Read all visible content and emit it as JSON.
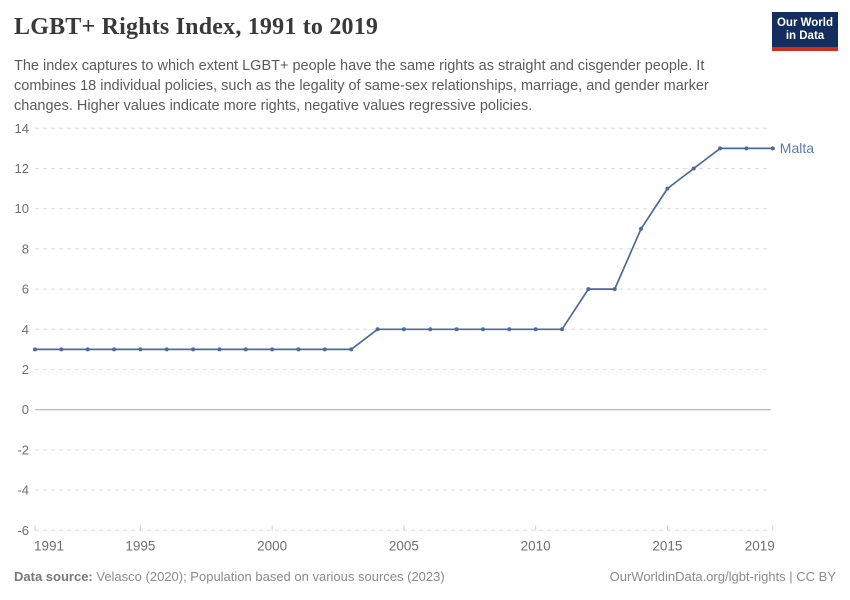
{
  "header": {
    "title": "LGBT+ Rights Index, 1991 to 2019",
    "subtitle_lines": [
      "The index captures to which extent LGBT+ people have the same rights as straight and cisgender people. It",
      "combines 18 individual policies, such as the legality of same-sex relationships, marriage, and gender marker",
      "changes. Higher values indicate more rights, negative values regressive policies."
    ],
    "logo": {
      "line1": "Our World",
      "line2": "in Data",
      "bg_color": "#142d5f",
      "accent_color": "#cf2e21"
    }
  },
  "chart_data": {
    "type": "line",
    "title": "LGBT+ Rights Index, 1991 to 2019",
    "x": [
      1991,
      1992,
      1993,
      1994,
      1995,
      1996,
      1997,
      1998,
      1999,
      2000,
      2001,
      2002,
      2003,
      2004,
      2005,
      2006,
      2007,
      2008,
      2009,
      2010,
      2011,
      2012,
      2013,
      2014,
      2015,
      2016,
      2017,
      2018,
      2019
    ],
    "series": [
      {
        "name": "Malta",
        "color": "#4c6a9c",
        "label_color": "#5b79a8",
        "values": [
          3,
          3,
          3,
          3,
          3,
          3,
          3,
          3,
          3,
          3,
          3,
          3,
          3,
          4,
          4,
          4,
          4,
          4,
          4,
          4,
          4,
          6,
          6,
          9,
          11,
          12,
          13,
          13,
          13
        ]
      }
    ],
    "xlim": [
      1991,
      2019
    ],
    "ylim": [
      -6,
      14
    ],
    "yticks": [
      14,
      12,
      10,
      8,
      6,
      4,
      2,
      0,
      -2,
      -4,
      -6
    ],
    "xticks": [
      1991,
      1995,
      2000,
      2005,
      2010,
      2015,
      2019
    ],
    "grid": "horizontal-dashed",
    "zero_line": true,
    "legend_position": "end-of-line-label"
  },
  "footer": {
    "source_label": "Data source:",
    "source_text": " Velasco (2020); Population based on various sources (2023)",
    "right_text": "OurWorldinData.org/lgbt-rights | CC BY"
  }
}
